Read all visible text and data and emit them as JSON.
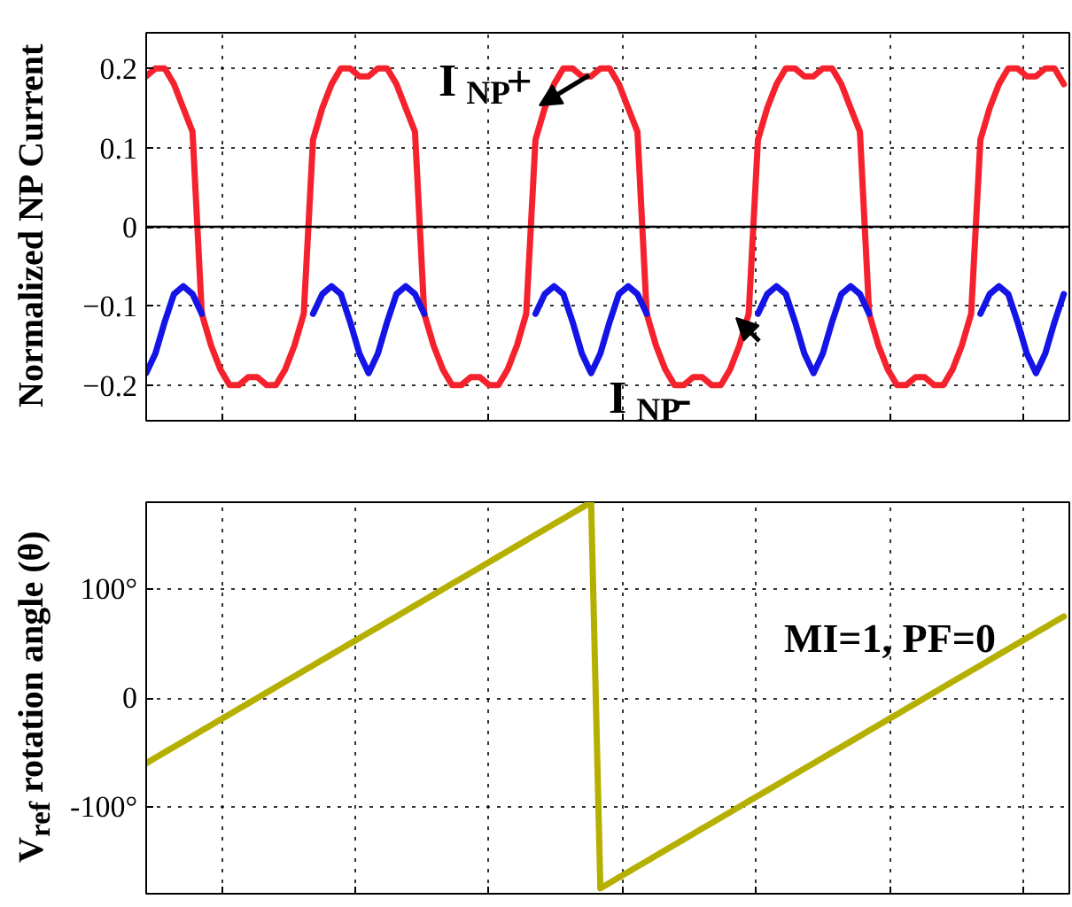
{
  "chart_data": [
    {
      "type": "line",
      "ylabel": "Normalized NP Current",
      "categories": [
        null,
        null,
        null,
        null,
        null,
        null,
        null,
        null,
        null,
        null,
        null,
        null,
        null,
        null,
        null,
        null,
        null,
        null,
        null,
        null,
        null,
        null,
        null,
        null,
        null,
        null,
        null,
        null,
        null,
        null,
        null,
        null,
        null,
        null,
        null,
        null,
        null,
        null,
        null,
        null,
        null,
        null,
        null,
        null,
        null,
        null,
        null,
        null,
        null,
        null,
        null,
        null,
        null,
        null,
        null,
        null,
        null,
        null,
        null,
        null,
        null,
        null,
        null,
        null,
        null,
        null,
        null,
        null,
        null,
        null,
        null,
        null,
        null,
        null,
        null,
        null,
        null,
        null,
        null,
        null,
        null,
        null,
        null,
        null,
        null,
        null,
        null,
        null,
        null,
        null,
        null,
        null,
        null,
        null,
        null,
        null,
        null,
        null,
        null,
        null
      ],
      "series": [
        {
          "name": "I$_{NP}$+",
          "color": "#f5222d",
          "values": [
            0.19,
            0.2,
            0.2,
            0.18,
            0.15,
            0.12,
            -0.11,
            -0.15,
            -0.18,
            -0.2,
            -0.2,
            -0.19,
            -0.19,
            -0.2,
            -0.2,
            -0.18,
            -0.15,
            -0.11,
            0.11,
            0.15,
            0.18,
            0.2,
            0.2,
            0.19,
            0.19,
            0.2,
            0.2,
            0.18,
            0.15,
            0.12,
            -0.11,
            -0.15,
            -0.18,
            -0.2,
            -0.2,
            -0.19,
            -0.19,
            -0.2,
            -0.2,
            -0.18,
            -0.15,
            -0.11,
            0.11,
            0.15,
            0.18,
            0.2,
            0.2,
            0.19,
            0.19,
            0.2,
            0.2,
            0.18,
            0.15,
            0.12,
            -0.11,
            -0.15,
            -0.18,
            -0.2,
            -0.2,
            -0.19,
            -0.19,
            -0.2,
            -0.2,
            -0.18,
            -0.15,
            -0.11,
            0.11,
            0.15,
            0.18,
            0.2,
            0.2,
            0.19,
            0.19,
            0.2,
            0.2,
            0.18,
            0.15,
            0.12,
            -0.11,
            -0.15,
            -0.18,
            -0.2,
            -0.2,
            -0.19,
            -0.19,
            -0.2,
            -0.2,
            -0.18,
            -0.15,
            -0.11,
            0.11,
            0.15,
            0.18,
            0.2,
            0.2,
            0.19,
            0.19,
            0.2,
            0.2,
            0.18
          ]
        },
        {
          "name": "I$_{NP}$-",
          "color": "#1414e6",
          "values": [
            -0.185,
            -0.16,
            -0.12,
            -0.085,
            -0.075,
            -0.085,
            -0.11,
            null,
            null,
            null,
            null,
            null,
            null,
            null,
            null,
            null,
            null,
            null,
            -0.11,
            -0.085,
            -0.075,
            -0.085,
            -0.12,
            -0.16,
            -0.185,
            -0.16,
            -0.12,
            -0.085,
            -0.075,
            -0.085,
            -0.11,
            null,
            null,
            null,
            null,
            null,
            null,
            null,
            null,
            null,
            null,
            null,
            -0.11,
            -0.085,
            -0.075,
            -0.085,
            -0.12,
            -0.16,
            -0.185,
            -0.16,
            -0.12,
            -0.085,
            -0.075,
            -0.085,
            -0.11,
            null,
            null,
            null,
            null,
            null,
            null,
            null,
            null,
            null,
            null,
            null,
            -0.11,
            -0.085,
            -0.075,
            -0.085,
            -0.12,
            -0.16,
            -0.185,
            -0.16,
            -0.12,
            -0.085,
            -0.075,
            -0.085,
            -0.11,
            null,
            null,
            null,
            null,
            null,
            null,
            null,
            null,
            null,
            null,
            null,
            -0.11,
            -0.085,
            -0.075,
            -0.085,
            -0.12,
            -0.16,
            -0.185,
            -0.16,
            -0.12,
            -0.085
          ]
        }
      ],
      "ylim": [
        -0.245,
        0.245
      ],
      "yticks": [
        -0.2,
        -0.1,
        0,
        0.1,
        0.2
      ],
      "ref_lines": [
        {
          "axis": "y",
          "value": 0,
          "color": "#000000"
        }
      ],
      "grid": true,
      "tick_labels": "y",
      "line_style": "solid",
      "marker": "none"
    },
    {
      "type": "line",
      "ylabel": "V$_{ref}$ rotation angle (θ)",
      "categories": [
        null,
        null,
        null,
        null,
        null,
        null,
        null,
        null,
        null,
        null,
        null,
        null,
        null,
        null,
        null,
        null,
        null,
        null,
        null,
        null,
        null,
        null,
        null,
        null,
        null,
        null,
        null,
        null,
        null,
        null,
        null,
        null,
        null,
        null,
        null,
        null,
        null,
        null,
        null,
        null,
        null,
        null,
        null,
        null,
        null,
        null,
        null,
        null,
        null,
        null,
        null,
        null,
        null,
        null,
        null,
        null,
        null,
        null,
        null,
        null,
        null,
        null,
        null,
        null,
        null,
        null,
        null,
        null,
        null,
        null,
        null,
        null,
        null,
        null,
        null,
        null,
        null,
        null,
        null,
        null,
        null,
        null,
        null,
        null,
        null,
        null,
        null,
        null,
        null,
        null,
        null,
        null,
        null,
        null,
        null,
        null,
        null,
        null,
        null,
        null
      ],
      "series": [
        {
          "color": "#b5b000",
          "values": [
            -60,
            -55,
            -50,
            -45,
            -40,
            -35,
            -30,
            -25,
            -20,
            -15,
            -10,
            -5,
            0,
            5,
            10,
            15,
            20,
            25,
            30,
            35,
            40,
            45,
            50,
            55,
            60,
            65,
            70,
            75,
            80,
            85,
            90,
            95,
            100,
            105,
            110,
            115,
            120,
            125,
            130,
            135,
            140,
            145,
            150,
            155,
            160,
            165,
            170,
            175,
            180,
            -175,
            -170,
            -165,
            -160,
            -155,
            -150,
            -145,
            -140,
            -135,
            -130,
            -125,
            -120,
            -115,
            -110,
            -105,
            -100,
            -95,
            -90,
            -85,
            -80,
            -75,
            -70,
            -65,
            -60,
            -55,
            -50,
            -45,
            -40,
            -35,
            -30,
            -25,
            -20,
            -15,
            -10,
            -5,
            0,
            5,
            10,
            15,
            20,
            25,
            30,
            35,
            40,
            45,
            50,
            55,
            60,
            65,
            70,
            75
          ]
        }
      ],
      "ylim": [
        -180,
        180
      ],
      "yticks": [
        {
          "value": -100,
          "label": "-100°"
        },
        0,
        {
          "value": 100,
          "label": "100°"
        }
      ],
      "annotations": [
        "MI=1, PF=0"
      ],
      "grid": true,
      "tick_labels": "y",
      "line_style": "solid",
      "marker": "none"
    }
  ]
}
